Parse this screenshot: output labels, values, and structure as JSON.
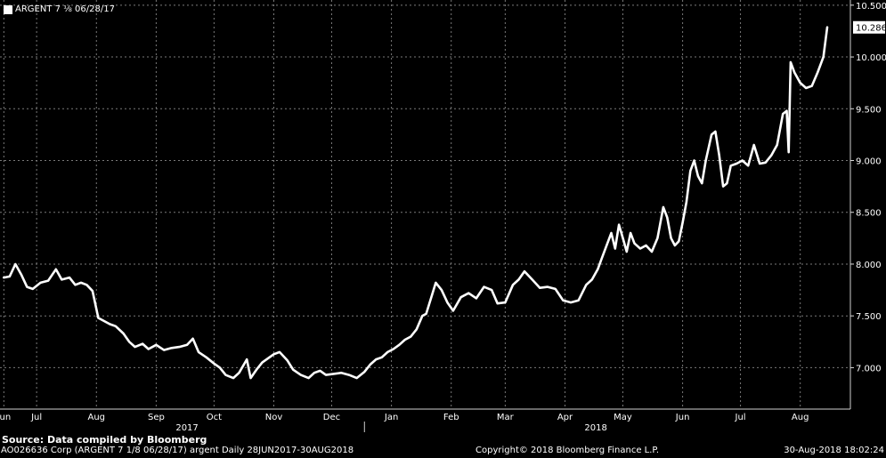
{
  "legend": {
    "label": "ARGENT 7 ⅛ 06/28/17",
    "color": "#ffffff"
  },
  "footer": {
    "source": "Source: Data compiled by Bloomberg",
    "security": "AO026636 Corp (ARGENT 7 1/8 06/28/17) argent  Daily 28JUN2017-30AUG2018",
    "copyright": "Copyright© 2018 Bloomberg Finance L.P.",
    "timestamp": "30-Aug-2018 18:02:24"
  },
  "chart_data": {
    "type": "line",
    "title": "",
    "xlabel": "",
    "ylabel": "",
    "ylim": [
      6.6,
      10.55
    ],
    "yticks": [
      7.0,
      7.5,
      8.0,
      8.5,
      9.0,
      9.5,
      10.0,
      10.5
    ],
    "ytick_labels": [
      "7.000",
      "7.500",
      "8.000",
      "8.500",
      "9.000",
      "9.500",
      "10.000",
      "10.500"
    ],
    "xticks": [
      {
        "date": "2017-06-28",
        "label": "Jun"
      },
      {
        "date": "2017-07-15",
        "label": "Jul"
      },
      {
        "date": "2017-08-15",
        "label": "Aug"
      },
      {
        "date": "2017-09-15",
        "label": "Sep"
      },
      {
        "date": "2017-10-15",
        "label": "Oct"
      },
      {
        "date": "2017-11-15",
        "label": "Nov"
      },
      {
        "date": "2017-12-15",
        "label": "Dec"
      },
      {
        "date": "2018-01-15",
        "label": "Jan"
      },
      {
        "date": "2018-02-15",
        "label": "Feb"
      },
      {
        "date": "2018-03-15",
        "label": "Mar"
      },
      {
        "date": "2018-04-15",
        "label": "Apr"
      },
      {
        "date": "2018-05-15",
        "label": "May"
      },
      {
        "date": "2018-06-15",
        "label": "Jun"
      },
      {
        "date": "2018-07-15",
        "label": "Jul"
      },
      {
        "date": "2018-08-15",
        "label": "Aug"
      }
    ],
    "year_labels": [
      {
        "date": "2017-10-01",
        "label": "2017"
      },
      {
        "date": "2018-05-01",
        "label": "2018"
      }
    ],
    "year_separator": "2018-01-01",
    "last_value_label": "10.286",
    "grid": true,
    "legend": "top-left",
    "series": [
      {
        "name": "ARGENT 7 ⅛ 06/28/17",
        "color": "#ffffff",
        "points": [
          [
            "2017-06-28",
            7.87
          ],
          [
            "2017-07-01",
            7.88
          ],
          [
            "2017-07-04",
            8.0
          ],
          [
            "2017-07-07",
            7.9
          ],
          [
            "2017-07-10",
            7.78
          ],
          [
            "2017-07-13",
            7.76
          ],
          [
            "2017-07-17",
            7.82
          ],
          [
            "2017-07-21",
            7.84
          ],
          [
            "2017-07-25",
            7.95
          ],
          [
            "2017-07-28",
            7.85
          ],
          [
            "2017-08-01",
            7.87
          ],
          [
            "2017-08-04",
            7.8
          ],
          [
            "2017-08-07",
            7.82
          ],
          [
            "2017-08-10",
            7.8
          ],
          [
            "2017-08-13",
            7.74
          ],
          [
            "2017-08-16",
            7.48
          ],
          [
            "2017-08-19",
            7.45
          ],
          [
            "2017-08-22",
            7.42
          ],
          [
            "2017-08-25",
            7.4
          ],
          [
            "2017-08-29",
            7.33
          ],
          [
            "2017-09-01",
            7.25
          ],
          [
            "2017-09-04",
            7.2
          ],
          [
            "2017-09-08",
            7.23
          ],
          [
            "2017-09-11",
            7.18
          ],
          [
            "2017-09-15",
            7.22
          ],
          [
            "2017-09-19",
            7.17
          ],
          [
            "2017-09-23",
            7.19
          ],
          [
            "2017-09-27",
            7.2
          ],
          [
            "2017-10-01",
            7.22
          ],
          [
            "2017-10-04",
            7.28
          ],
          [
            "2017-10-07",
            7.15
          ],
          [
            "2017-10-11",
            7.1
          ],
          [
            "2017-10-15",
            7.04
          ],
          [
            "2017-10-18",
            7.0
          ],
          [
            "2017-10-21",
            6.93
          ],
          [
            "2017-10-25",
            6.9
          ],
          [
            "2017-10-28",
            6.95
          ],
          [
            "2017-11-01",
            7.08
          ],
          [
            "2017-11-03",
            6.9
          ],
          [
            "2017-11-06",
            6.98
          ],
          [
            "2017-11-09",
            7.05
          ],
          [
            "2017-11-12",
            7.09
          ],
          [
            "2017-11-15",
            7.13
          ],
          [
            "2017-11-18",
            7.15
          ],
          [
            "2017-11-22",
            7.07
          ],
          [
            "2017-11-25",
            6.98
          ],
          [
            "2017-11-29",
            6.93
          ],
          [
            "2017-12-03",
            6.9
          ],
          [
            "2017-12-06",
            6.95
          ],
          [
            "2017-12-09",
            6.97
          ],
          [
            "2017-12-12",
            6.93
          ],
          [
            "2017-12-16",
            6.94
          ],
          [
            "2017-12-20",
            6.95
          ],
          [
            "2017-12-24",
            6.93
          ],
          [
            "2017-12-28",
            6.9
          ],
          [
            "2018-01-01",
            6.96
          ],
          [
            "2018-01-04",
            7.03
          ],
          [
            "2018-01-07",
            7.08
          ],
          [
            "2018-01-10",
            7.1
          ],
          [
            "2018-01-13",
            7.15
          ],
          [
            "2018-01-16",
            7.18
          ],
          [
            "2018-01-19",
            7.22
          ],
          [
            "2018-01-22",
            7.27
          ],
          [
            "2018-01-25",
            7.3
          ],
          [
            "2018-01-28",
            7.37
          ],
          [
            "2018-01-31",
            7.5
          ],
          [
            "2018-02-02",
            7.52
          ],
          [
            "2018-02-05",
            7.7
          ],
          [
            "2018-02-07",
            7.82
          ],
          [
            "2018-02-10",
            7.75
          ],
          [
            "2018-02-13",
            7.63
          ],
          [
            "2018-02-16",
            7.55
          ],
          [
            "2018-02-20",
            7.68
          ],
          [
            "2018-02-24",
            7.72
          ],
          [
            "2018-02-28",
            7.67
          ],
          [
            "2018-03-04",
            7.78
          ],
          [
            "2018-03-08",
            7.75
          ],
          [
            "2018-03-11",
            7.62
          ],
          [
            "2018-03-15",
            7.63
          ],
          [
            "2018-03-19",
            7.8
          ],
          [
            "2018-03-22",
            7.85
          ],
          [
            "2018-03-25",
            7.93
          ],
          [
            "2018-03-29",
            7.85
          ],
          [
            "2018-04-02",
            7.77
          ],
          [
            "2018-04-06",
            7.78
          ],
          [
            "2018-04-10",
            7.76
          ],
          [
            "2018-04-14",
            7.65
          ],
          [
            "2018-04-18",
            7.63
          ],
          [
            "2018-04-22",
            7.65
          ],
          [
            "2018-04-26",
            7.8
          ],
          [
            "2018-04-29",
            7.85
          ],
          [
            "2018-05-02",
            7.95
          ],
          [
            "2018-05-04",
            8.05
          ],
          [
            "2018-05-07",
            8.2
          ],
          [
            "2018-05-09",
            8.3
          ],
          [
            "2018-05-11",
            8.15
          ],
          [
            "2018-05-13",
            8.38
          ],
          [
            "2018-05-15",
            8.25
          ],
          [
            "2018-05-17",
            8.12
          ],
          [
            "2018-05-19",
            8.3
          ],
          [
            "2018-05-21",
            8.2
          ],
          [
            "2018-05-24",
            8.15
          ],
          [
            "2018-05-27",
            8.18
          ],
          [
            "2018-05-30",
            8.12
          ],
          [
            "2018-06-02",
            8.25
          ],
          [
            "2018-06-05",
            8.55
          ],
          [
            "2018-06-07",
            8.45
          ],
          [
            "2018-06-09",
            8.25
          ],
          [
            "2018-06-11",
            8.18
          ],
          [
            "2018-06-13",
            8.22
          ],
          [
            "2018-06-15",
            8.4
          ],
          [
            "2018-06-17",
            8.6
          ],
          [
            "2018-06-19",
            8.9
          ],
          [
            "2018-06-21",
            9.0
          ],
          [
            "2018-06-23",
            8.85
          ],
          [
            "2018-06-25",
            8.78
          ],
          [
            "2018-06-27",
            9.0
          ],
          [
            "2018-06-30",
            9.25
          ],
          [
            "2018-07-02",
            9.28
          ],
          [
            "2018-07-04",
            9.05
          ],
          [
            "2018-07-06",
            8.75
          ],
          [
            "2018-07-08",
            8.78
          ],
          [
            "2018-07-10",
            8.95
          ],
          [
            "2018-07-13",
            8.97
          ],
          [
            "2018-07-16",
            9.0
          ],
          [
            "2018-07-19",
            8.95
          ],
          [
            "2018-07-22",
            9.15
          ],
          [
            "2018-07-25",
            8.97
          ],
          [
            "2018-07-28",
            8.98
          ],
          [
            "2018-07-31",
            9.05
          ],
          [
            "2018-08-03",
            9.15
          ],
          [
            "2018-08-06",
            9.45
          ],
          [
            "2018-08-08",
            9.48
          ],
          [
            "2018-08-09",
            9.08
          ],
          [
            "2018-08-10",
            9.95
          ],
          [
            "2018-08-12",
            9.85
          ],
          [
            "2018-08-15",
            9.75
          ],
          [
            "2018-08-18",
            9.7
          ],
          [
            "2018-08-21",
            9.72
          ],
          [
            "2018-08-24",
            9.85
          ],
          [
            "2018-08-27",
            10.0
          ],
          [
            "2018-08-29",
            10.286
          ]
        ]
      }
    ]
  }
}
